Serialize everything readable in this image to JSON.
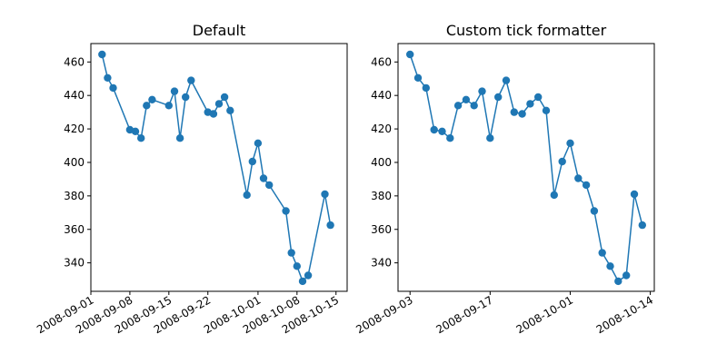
{
  "charts": [
    {
      "title": "Default",
      "type": "line",
      "markers": "circle",
      "color": "#1f77b4",
      "x_axis": {
        "kind": "date",
        "range": [
          "2008-09-01",
          "2008-10-17"
        ],
        "ticks": [
          "2008-09-01",
          "2008-09-08",
          "2008-09-15",
          "2008-09-22",
          "2008-10-01",
          "2008-10-08",
          "2008-10-15"
        ]
      },
      "y_axis": {
        "range": [
          323,
          471
        ],
        "ticks": [
          "340",
          "360",
          "380",
          "400",
          "420",
          "440",
          "460"
        ]
      }
    },
    {
      "title": "Custom tick formatter",
      "type": "line",
      "markers": "circle",
      "color": "#1f77b4",
      "x_axis": {
        "kind": "index",
        "index_range": [
          -1.5,
          30.5
        ],
        "ticks": [
          {
            "index": 0,
            "label": "2008-09-03"
          },
          {
            "index": 10,
            "label": "2008-09-17"
          },
          {
            "index": 20,
            "label": "2008-10-01"
          },
          {
            "index": 30,
            "label": "2008-10-14"
          }
        ]
      },
      "y_axis": {
        "range": [
          323,
          471
        ],
        "ticks": [
          "340",
          "360",
          "380",
          "400",
          "420",
          "440",
          "460"
        ]
      }
    }
  ],
  "chart_data": [
    {
      "type": "line",
      "title": "Default",
      "series": [
        {
          "x": [
            "2008-09-03",
            "2008-09-04",
            "2008-09-05",
            "2008-09-08",
            "2008-09-09",
            "2008-09-10",
            "2008-09-11",
            "2008-09-12",
            "2008-09-15",
            "2008-09-16",
            "2008-09-17",
            "2008-09-18",
            "2008-09-19",
            "2008-09-22",
            "2008-09-23",
            "2008-09-24",
            "2008-09-25",
            "2008-09-26",
            "2008-09-29",
            "2008-09-30",
            "2008-10-01",
            "2008-10-02",
            "2008-10-03",
            "2008-10-06",
            "2008-10-07",
            "2008-10-08",
            "2008-10-09",
            "2008-10-10",
            "2008-10-13",
            "2008-10-14"
          ],
          "y": [
            464.5,
            450.5,
            444.5,
            419.5,
            418.5,
            414.5,
            434,
            437.5,
            434,
            442.5,
            414.5,
            439,
            449,
            430,
            429,
            435,
            439,
            431,
            380.5,
            400.5,
            411.5,
            390.5,
            386.5,
            371,
            346,
            338,
            329,
            332.5,
            381,
            362.5
          ]
        }
      ]
    },
    {
      "type": "line",
      "title": "Custom tick formatter",
      "series": [
        {
          "x": [
            "2008-09-03",
            "2008-09-04",
            "2008-09-05",
            "2008-09-08",
            "2008-09-09",
            "2008-09-10",
            "2008-09-11",
            "2008-09-12",
            "2008-09-15",
            "2008-09-16",
            "2008-09-17",
            "2008-09-18",
            "2008-09-19",
            "2008-09-22",
            "2008-09-23",
            "2008-09-24",
            "2008-09-25",
            "2008-09-26",
            "2008-09-29",
            "2008-09-30",
            "2008-10-01",
            "2008-10-02",
            "2008-10-03",
            "2008-10-06",
            "2008-10-07",
            "2008-10-08",
            "2008-10-09",
            "2008-10-10",
            "2008-10-13",
            "2008-10-14"
          ],
          "y": [
            464.5,
            450.5,
            444.5,
            419.5,
            418.5,
            414.5,
            434,
            437.5,
            434,
            442.5,
            414.5,
            439,
            449,
            430,
            429,
            435,
            439,
            431,
            380.5,
            400.5,
            411.5,
            390.5,
            386.5,
            371,
            346,
            338,
            329,
            332.5,
            381,
            362.5
          ]
        }
      ]
    }
  ]
}
